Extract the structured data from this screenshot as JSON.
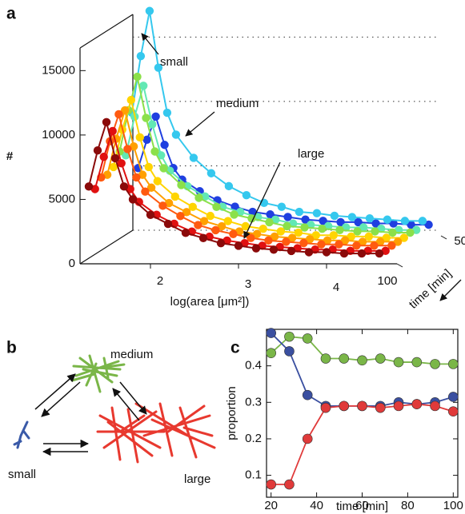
{
  "chart_data": [
    {
      "panel": "a",
      "type": "waterfall",
      "xlabel": "log(area [μm²])",
      "ylabel": "#",
      "zlabel": "time [min]",
      "x": [
        1.3,
        1.4,
        1.5,
        1.6,
        1.7,
        1.8,
        2.0,
        2.2,
        2.4,
        2.6,
        2.8,
        3.0,
        3.2,
        3.4,
        3.6,
        3.8,
        4.0,
        4.2,
        4.4,
        4.6
      ],
      "xlim": [
        1.2,
        4.8
      ],
      "xticks": [
        2,
        3,
        4
      ],
      "ylim": [
        0,
        18000
      ],
      "yticks": [
        0,
        5000,
        10000,
        15000
      ],
      "zlim": [
        100,
        40
      ],
      "zticks": [
        50,
        100
      ],
      "series": [
        {
          "color": "#1f3fe0",
          "z": 44,
          "values": [
            5000,
            7200,
            9000,
            6800,
            5000,
            4100,
            3200,
            2500,
            2000,
            1600,
            1400,
            1200,
            1000,
            900,
            800,
            800,
            700,
            700,
            600,
            600
          ]
        },
        {
          "color": "#35c8ee",
          "z": 51,
          "values": [
            9600,
            14000,
            17500,
            13100,
            9600,
            7900,
            6100,
            4900,
            3900,
            3200,
            2600,
            2300,
            1900,
            1800,
            1600,
            1500,
            1400,
            1300,
            1200,
            1200
          ]
        },
        {
          "color": "#62e8b4",
          "z": 58,
          "values": [
            6600,
            9600,
            12000,
            9000,
            6600,
            5400,
            4200,
            3400,
            2600,
            2200,
            1800,
            1600,
            1300,
            1200,
            1100,
            1000,
            1000,
            900,
            800,
            800
          ]
        },
        {
          "color": "#8be04a",
          "z": 65,
          "values": [
            7200,
            10400,
            13000,
            9800,
            7200,
            5900,
            4600,
            3600,
            2900,
            2300,
            2000,
            1700,
            1400,
            1300,
            1200,
            1100,
            1000,
            1000,
            900,
            900
          ]
        },
        {
          "color": "#ffd400",
          "z": 72,
          "values": [
            6300,
            9200,
            11500,
            8600,
            6300,
            5200,
            4000,
            3200,
            2500,
            2100,
            1700,
            1500,
            1300,
            1200,
            1000,
            1000,
            900,
            900,
            800,
            800
          ]
        },
        {
          "color": "#ffa000",
          "z": 79,
          "values": [
            6000,
            8800,
            11000,
            8200,
            6000,
            5000,
            3800,
            3100,
            2400,
            2000,
            1600,
            1400,
            1200,
            1100,
            1000,
            900,
            900,
            800,
            800,
            800
          ]
        },
        {
          "color": "#ff5a10",
          "z": 86,
          "values": [
            6100,
            8900,
            11000,
            8300,
            6100,
            5000,
            3900,
            3100,
            2400,
            2000,
            1700,
            1400,
            1200,
            1100,
            1000,
            900,
            900,
            800,
            800,
            800
          ]
        },
        {
          "color": "#e01010",
          "z": 93,
          "values": [
            5500,
            8000,
            10000,
            7500,
            5500,
            4500,
            3500,
            2800,
            2200,
            1800,
            1500,
            1300,
            1100,
            1000,
            900,
            800,
            800,
            700,
            700,
            700
          ]
        },
        {
          "color": "#8b0a0a",
          "z": 100,
          "values": [
            6000,
            8800,
            11000,
            8200,
            6000,
            5000,
            3800,
            3100,
            2400,
            2000,
            1600,
            1400,
            1200,
            1100,
            1000,
            900,
            900,
            800,
            800,
            800
          ]
        }
      ],
      "annotations": [
        {
          "text": "small",
          "color": "#2b4ba8"
        },
        {
          "text": "medium",
          "color": "#7ab648"
        },
        {
          "text": "large",
          "color": "#e8392f"
        }
      ]
    },
    {
      "panel": "c",
      "type": "line",
      "xlabel": "time [min]",
      "ylabel": "proportion",
      "x": [
        20,
        28,
        36,
        44,
        52,
        60,
        68,
        76,
        84,
        92,
        100
      ],
      "xlim": [
        18,
        102
      ],
      "xticks": [
        20,
        40,
        60,
        80,
        100
      ],
      "ylim": [
        0.04,
        0.5
      ],
      "yticks": [
        0.1,
        0.2,
        0.3,
        0.4
      ],
      "series": [
        {
          "color": "#7ab648",
          "values": [
            0.435,
            0.48,
            0.475,
            0.42,
            0.42,
            0.415,
            0.42,
            0.41,
            0.41,
            0.405,
            0.405
          ]
        },
        {
          "color": "#3a4fa0",
          "values": [
            0.49,
            0.44,
            0.32,
            0.29,
            0.29,
            0.29,
            0.29,
            0.3,
            0.295,
            0.3,
            0.315
          ]
        },
        {
          "color": "#e03a3a",
          "values": [
            0.075,
            0.075,
            0.2,
            0.285,
            0.29,
            0.29,
            0.285,
            0.29,
            0.295,
            0.29,
            0.275
          ]
        }
      ]
    }
  ],
  "diagram": {
    "panel": "b",
    "nodes": [
      {
        "label": "medium",
        "color": "#7ab648"
      },
      {
        "label": "small",
        "color": "#3a5aa8"
      },
      {
        "label": "large",
        "color": "#e8392f"
      }
    ]
  }
}
